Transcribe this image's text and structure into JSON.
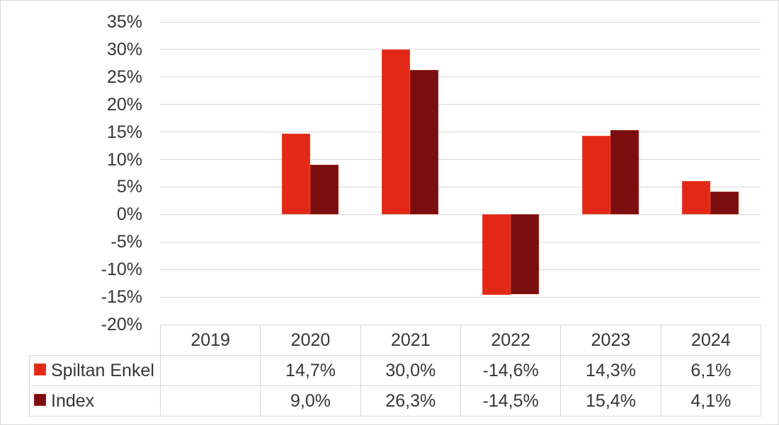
{
  "chart_data": {
    "type": "bar",
    "title": "",
    "categories": [
      "2019",
      "2020",
      "2021",
      "2022",
      "2023",
      "2024"
    ],
    "series": [
      {
        "name": "Spiltan Enkel",
        "color": "#E32817",
        "border_color": "#E8462F",
        "values": [
          null,
          14.7,
          30.0,
          -14.6,
          14.3,
          6.1
        ],
        "value_labels": [
          "",
          "14,7%",
          "30,0%",
          "-14,6%",
          "14,3%",
          "6,1%"
        ]
      },
      {
        "name": "Index",
        "color": "#7B0F10",
        "border_color": "#9C1B10",
        "values": [
          null,
          9.0,
          26.3,
          -14.5,
          15.4,
          4.1
        ],
        "value_labels": [
          "",
          "9,0%",
          "26,3%",
          "-14,5%",
          "15,4%",
          "4,1%"
        ]
      }
    ],
    "ylim": [
      -20,
      35
    ],
    "ytick_step": 5,
    "yticks": [
      35,
      30,
      25,
      20,
      15,
      10,
      5,
      0,
      -5,
      -10,
      -15,
      -20
    ],
    "ytick_labels": [
      "35%",
      "30%",
      "25%",
      "20%",
      "15%",
      "10%",
      "5%",
      "0%",
      "-5%",
      "-10%",
      "-15%",
      "-20%"
    ],
    "gridline_values": [
      35,
      30,
      25,
      20,
      15,
      10,
      5,
      0,
      -5,
      -10,
      -15
    ],
    "grid": true,
    "legend_position": "data-table-left",
    "number_format": "percent-swedish-comma",
    "colors": {
      "grid": "#D9D9D9",
      "table_border": "#D9D9D9",
      "text": "#363636",
      "background": "#FFFFFF"
    }
  }
}
